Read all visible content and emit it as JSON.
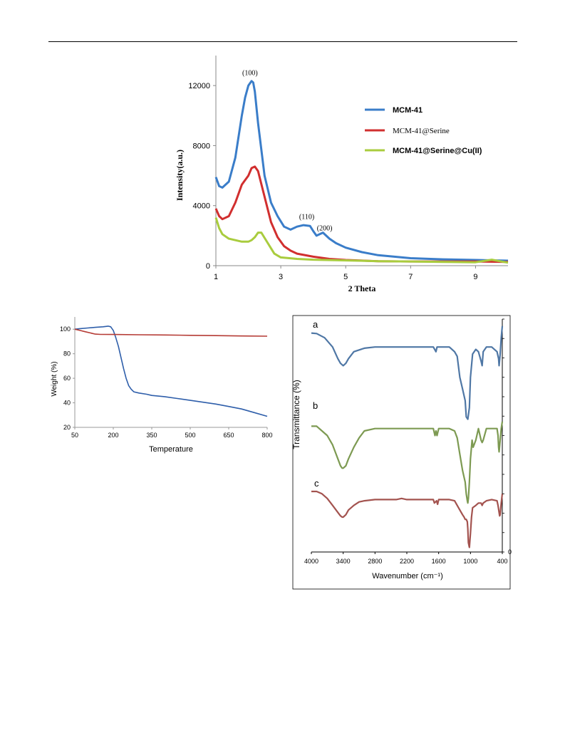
{
  "chart_data": [
    {
      "type": "line",
      "title": "",
      "xlabel": "2 Theta",
      "ylabel": "Intensity(a.u.)",
      "xlim": [
        1,
        10
      ],
      "ylim": [
        0,
        14000
      ],
      "xticks": [
        1,
        3,
        5,
        7,
        9
      ],
      "yticks": [
        0,
        4000,
        8000,
        12000
      ],
      "grid": false,
      "legend_position": "top-right",
      "annotations": [
        {
          "text": "(100)",
          "x": 2.05,
          "y": 12700
        },
        {
          "text": "(110)",
          "x": 3.8,
          "y": 3100
        },
        {
          "text": "(200)",
          "x": 4.35,
          "y": 2350
        }
      ],
      "series": [
        {
          "name": "MCM-41",
          "color": "#3a7dc9",
          "x": [
            1.0,
            1.1,
            1.2,
            1.4,
            1.6,
            1.8,
            1.9,
            2.0,
            2.1,
            2.15,
            2.2,
            2.3,
            2.5,
            2.7,
            2.9,
            3.1,
            3.3,
            3.5,
            3.7,
            3.9,
            4.0,
            4.1,
            4.3,
            4.5,
            4.7,
            5.0,
            5.5,
            6.0,
            6.5,
            7.0,
            8.0,
            9.0,
            10.0
          ],
          "y": [
            5900,
            5300,
            5200,
            5600,
            7200,
            10000,
            11200,
            12000,
            12300,
            12200,
            11600,
            9500,
            6000,
            4200,
            3300,
            2600,
            2400,
            2600,
            2700,
            2650,
            2300,
            2000,
            2200,
            1800,
            1500,
            1200,
            900,
            700,
            600,
            500,
            420,
            380,
            330
          ]
        },
        {
          "name": "MCM-41@Serine",
          "color": "#d12f2f",
          "x": [
            1.0,
            1.1,
            1.2,
            1.4,
            1.6,
            1.8,
            2.0,
            2.1,
            2.2,
            2.3,
            2.5,
            2.7,
            2.9,
            3.1,
            3.3,
            3.5,
            4.0,
            4.5,
            5.0,
            6.0,
            7.0,
            8.0,
            9.0,
            10.0
          ],
          "y": [
            3800,
            3300,
            3100,
            3300,
            4200,
            5400,
            6000,
            6500,
            6600,
            6300,
            4600,
            2900,
            1900,
            1300,
            1000,
            800,
            600,
            450,
            380,
            300,
            280,
            280,
            280,
            250
          ]
        },
        {
          "name": "MCM-41@Serine@Cu(II)",
          "color": "#a9cc3e",
          "x": [
            1.0,
            1.1,
            1.2,
            1.4,
            1.6,
            1.8,
            2.0,
            2.1,
            2.2,
            2.3,
            2.4,
            2.6,
            2.8,
            3.0,
            3.5,
            4.0,
            5.0,
            6.0,
            7.0,
            8.0,
            9.0,
            9.5,
            10.0
          ],
          "y": [
            3200,
            2500,
            2100,
            1800,
            1700,
            1600,
            1600,
            1700,
            1900,
            2200,
            2200,
            1500,
            800,
            550,
            450,
            400,
            350,
            300,
            280,
            250,
            230,
            400,
            200
          ]
        }
      ]
    },
    {
      "type": "line",
      "title": "",
      "xlabel": "Temperature",
      "ylabel": "Weight (%)",
      "xlim": [
        50,
        800
      ],
      "ylim": [
        20,
        110
      ],
      "xticks": [
        50,
        200,
        350,
        500,
        650,
        800
      ],
      "yticks": [
        20,
        40,
        60,
        80,
        100
      ],
      "grid": false,
      "series": [
        {
          "name": "",
          "color": "#2e5eaa",
          "x": [
            50,
            70,
            100,
            130,
            160,
            180,
            190,
            200,
            210,
            220,
            230,
            240,
            250,
            260,
            270,
            280,
            300,
            330,
            350,
            400,
            450,
            500,
            550,
            600,
            650,
            700,
            750,
            800
          ],
          "y": [
            100,
            100.5,
            101,
            101.5,
            102,
            102.5,
            102,
            99,
            93,
            86,
            77,
            68,
            60,
            54,
            51,
            49,
            48,
            47,
            46,
            45,
            43.5,
            42,
            40.5,
            39,
            37,
            35,
            32,
            29
          ]
        },
        {
          "name": "",
          "color": "#b53b35",
          "x": [
            50,
            70,
            90,
            110,
            130,
            150,
            200,
            300,
            400,
            500,
            600,
            700,
            800
          ],
          "y": [
            100,
            99,
            98,
            97,
            96,
            95.8,
            95.7,
            95.5,
            95.3,
            95,
            94.8,
            94.5,
            94.3
          ]
        }
      ]
    },
    {
      "type": "line",
      "title": "",
      "xlabel": "Wavenumber (cm⁻¹)",
      "ylabel": "Transmittance (%)",
      "xlim": [
        4000,
        400
      ],
      "ylim": [
        0,
        100
      ],
      "xticks": [
        4000,
        3400,
        2800,
        2200,
        1600,
        1000,
        400
      ],
      "yticks": [
        0
      ],
      "grid": false,
      "series": [
        {
          "name": "a",
          "color": "#4f77a5",
          "x": [
            4000,
            3900,
            3750,
            3600,
            3500,
            3450,
            3400,
            3350,
            3300,
            3200,
            3000,
            2800,
            2400,
            2000,
            1700,
            1650,
            1630,
            1600,
            1400,
            1300,
            1250,
            1200,
            1150,
            1100,
            1080,
            1050,
            1020,
            1000,
            960,
            900,
            850,
            800,
            780,
            760,
            700,
            600,
            500,
            470,
            460,
            440,
            420,
            400
          ],
          "y": [
            94,
            93.8,
            92,
            88,
            83,
            81,
            80,
            81,
            83,
            86,
            87.5,
            88,
            88,
            88,
            88,
            86,
            88,
            88,
            88,
            86,
            84,
            75,
            70,
            65,
            58,
            57,
            62,
            75,
            85,
            87,
            86,
            82,
            80,
            86,
            88,
            88,
            86,
            83,
            80,
            85,
            92,
            97
          ]
        },
        {
          "name": "b",
          "color": "#7d9a52",
          "x": [
            4000,
            3900,
            3800,
            3700,
            3600,
            3500,
            3450,
            3420,
            3400,
            3350,
            3300,
            3200,
            3100,
            3000,
            2800,
            2400,
            2000,
            1700,
            1670,
            1650,
            1630,
            1600,
            1400,
            1300,
            1250,
            1200,
            1150,
            1100,
            1080,
            1060,
            1050,
            1040,
            1020,
            1000,
            970,
            950,
            900,
            850,
            800,
            780,
            760,
            700,
            600,
            500,
            480,
            470,
            460,
            440,
            420,
            400
          ],
          "y": [
            54,
            54,
            52,
            50,
            46,
            40,
            37,
            36,
            36,
            37,
            40,
            45,
            49,
            52,
            53,
            53,
            53,
            53,
            50,
            52,
            50,
            53,
            53,
            52,
            49,
            42,
            35,
            30,
            25,
            22,
            21,
            23,
            30,
            40,
            48,
            45,
            48,
            53,
            48,
            47,
            48,
            53,
            53,
            53,
            50,
            45,
            43,
            48,
            53,
            56
          ]
        },
        {
          "name": "c",
          "color": "#a3534f",
          "x": [
            4000,
            3900,
            3800,
            3700,
            3600,
            3500,
            3450,
            3420,
            3400,
            3350,
            3300,
            3200,
            3100,
            3000,
            2800,
            2400,
            2300,
            2200,
            2000,
            1700,
            1680,
            1640,
            1620,
            1600,
            1400,
            1300,
            1250,
            1200,
            1150,
            1120,
            1100,
            1080,
            1060,
            1050,
            1040,
            1020,
            1000,
            980,
            960,
            900,
            850,
            800,
            780,
            760,
            700,
            600,
            500,
            480,
            460,
            450,
            440,
            420,
            400
          ],
          "y": [
            26,
            26,
            25,
            23,
            20,
            17,
            15.5,
            15,
            15,
            16,
            18,
            20,
            21.5,
            22,
            22.5,
            22.5,
            23,
            22.5,
            22.5,
            22.5,
            21,
            22,
            20.5,
            22.5,
            22.5,
            22,
            20,
            18,
            16,
            15,
            14,
            14,
            13,
            10,
            4,
            2,
            8,
            15,
            19,
            20,
            21,
            21,
            20,
            21,
            22,
            22.5,
            22,
            20,
            17,
            15.5,
            16,
            21,
            25
          ]
        }
      ]
    }
  ]
}
